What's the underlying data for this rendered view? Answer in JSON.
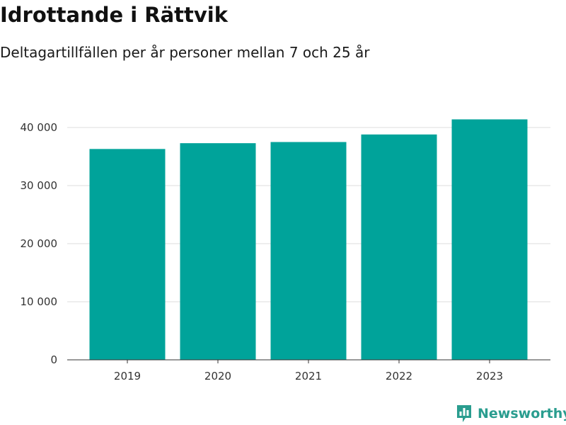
{
  "chart_data": {
    "type": "bar",
    "title": "Idrottande i Rättvik",
    "subtitle": "Deltagartillfällen per år personer mellan 7 och 25 år",
    "categories": [
      "2019",
      "2020",
      "2021",
      "2022",
      "2023"
    ],
    "values": [
      36300,
      37300,
      37500,
      38800,
      41400
    ],
    "ylim": [
      0,
      40000
    ],
    "yticks": [
      0,
      10000,
      20000,
      30000,
      40000
    ],
    "ytick_labels": [
      "0",
      "10 000",
      "20 000",
      "30 000",
      "40 000"
    ],
    "xlabel": "",
    "ylabel": "",
    "grid": true,
    "bar_color": "#00a39a"
  },
  "brand": {
    "name": "Newsworthy",
    "icon": "newsworthy-logo-icon",
    "color": "#2a9d8f"
  }
}
